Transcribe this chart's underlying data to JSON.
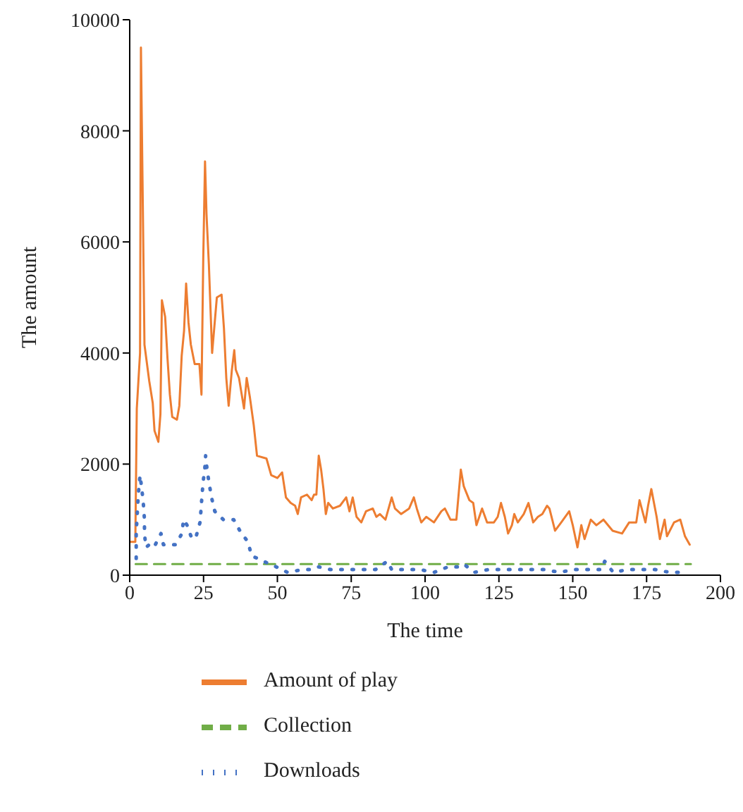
{
  "chart_data": {
    "type": "line",
    "xlabel": "The time",
    "ylabel": "The amount",
    "xlim": [
      0,
      200
    ],
    "xticks": [
      0,
      25,
      50,
      75,
      100,
      125,
      150,
      175,
      200
    ],
    "ylim": [
      0,
      10000
    ],
    "yticks": [
      0,
      2000,
      4000,
      6000,
      8000,
      10000
    ],
    "legend": "bottom",
    "marker": "none",
    "series": [
      {
        "name": "Amount of play",
        "color": "#ed7d31",
        "line_style": "solid",
        "x": [
          0,
          1.9,
          2.4,
          3.5,
          3.8,
          5,
          6.6,
          7.8,
          8.4,
          9.7,
          10.4,
          10.9,
          12,
          12.8,
          13.6,
          14.4,
          16,
          16.8,
          17.6,
          18.4,
          19.1,
          19.9,
          20.7,
          22,
          23.6,
          24.3,
          24.9,
          25.5,
          26,
          26.8,
          27.9,
          29.5,
          31.1,
          31.9,
          32.7,
          33.5,
          34.6,
          35.4,
          35.9,
          37,
          38.7,
          39.6,
          40.7,
          42,
          43.1,
          46.3,
          47.9,
          50,
          51.6,
          52.9,
          54.5,
          56,
          56.9,
          58,
          60,
          61.6,
          62.4,
          63.2,
          64,
          64.8,
          65.6,
          66.4,
          67.2,
          68.8,
          71.2,
          73.3,
          74.4,
          75.5,
          76.8,
          78.4,
          80,
          82.3,
          83.5,
          84.7,
          86.6,
          88.7,
          89.8,
          91.9,
          94.6,
          96.2,
          97.2,
          98.7,
          100.4,
          103,
          105.5,
          106.7,
          108.6,
          110.6,
          112.1,
          113.1,
          115,
          116.3,
          117.4,
          119.3,
          121,
          123.3,
          124.6,
          125.7,
          127,
          128.1,
          129.4,
          130.2,
          131.4,
          133.4,
          135,
          136.6,
          138.2,
          139.7,
          141.3,
          142.1,
          144,
          146.1,
          148.8,
          150,
          151.6,
          152.9,
          154,
          156.1,
          158,
          160.4,
          163.5,
          166.7,
          169.1,
          171.5,
          172.6,
          174.6,
          175.5,
          176.6,
          178.4,
          179.5,
          181.1,
          181.9,
          184.3,
          186.4,
          188,
          189.6
        ],
        "values": [
          600,
          600,
          3000,
          4000,
          9500,
          4150,
          3500,
          3100,
          2600,
          2400,
          2900,
          4950,
          4650,
          3900,
          3250,
          2850,
          2800,
          3050,
          3950,
          4400,
          5250,
          4550,
          4150,
          3800,
          3800,
          3250,
          5700,
          7450,
          6500,
          5600,
          4000,
          5000,
          5050,
          4450,
          3550,
          3050,
          3700,
          4050,
          3700,
          3550,
          3000,
          3550,
          3200,
          2700,
          2150,
          2100,
          1800,
          1750,
          1850,
          1400,
          1300,
          1250,
          1100,
          1400,
          1450,
          1350,
          1450,
          1450,
          2150,
          1900,
          1550,
          1100,
          1300,
          1200,
          1250,
          1400,
          1150,
          1400,
          1050,
          950,
          1150,
          1200,
          1050,
          1100,
          1000,
          1400,
          1200,
          1100,
          1200,
          1400,
          1200,
          950,
          1050,
          950,
          1150,
          1200,
          1000,
          1000,
          1900,
          1600,
          1350,
          1300,
          900,
          1200,
          950,
          950,
          1050,
          1300,
          1050,
          750,
          900,
          1100,
          950,
          1100,
          1300,
          950,
          1050,
          1100,
          1250,
          1200,
          800,
          950,
          1150,
          900,
          500,
          900,
          650,
          1000,
          900,
          1000,
          800,
          750,
          950,
          950,
          1350,
          950,
          1250,
          1550,
          1050,
          650,
          1000,
          700,
          950,
          1000,
          700,
          550
        ]
      },
      {
        "name": "Collection",
        "color": "#70ad47",
        "line_style": "dashed",
        "x": [
          2,
          190
        ],
        "values": [
          200,
          200
        ]
      },
      {
        "name": "Downloads",
        "color": "#4472c4",
        "line_style": "dotted",
        "x": [
          2.2,
          2.2,
          2.7,
          3,
          3.5,
          4.1,
          4.6,
          5,
          5,
          5.5,
          6.6,
          8.2,
          10.6,
          11.4,
          15.5,
          17.7,
          18.2,
          19.4,
          21.1,
          22.5,
          23.8,
          24.1,
          24.5,
          24.9,
          25.4,
          25.7,
          26.2,
          26.9,
          27.7,
          28.8,
          31.7,
          35.2,
          37.3,
          40,
          41.3,
          45.3,
          49.6,
          53.4,
          58.4,
          61.6,
          64,
          68,
          72.8,
          77.6,
          80,
          83.2,
          87.2,
          88.7,
          93.5,
          98.3,
          103,
          107.8,
          111,
          113.1,
          116.6,
          121.4,
          126.2,
          131,
          135.8,
          140.6,
          145.5,
          150.2,
          155,
          159.7,
          160.8,
          163.7,
          168.5,
          173.3,
          178,
          182.8,
          187.6
        ],
        "values": [
          300,
          750,
          1250,
          1500,
          1800,
          1550,
          1300,
          1000,
          750,
          500,
          550,
          500,
          750,
          550,
          550,
          750,
          1000,
          900,
          650,
          700,
          950,
          1150,
          1450,
          1700,
          1900,
          2150,
          1900,
          1650,
          1400,
          1150,
          1000,
          1000,
          800,
          600,
          350,
          250,
          150,
          50,
          100,
          100,
          150,
          100,
          100,
          100,
          100,
          100,
          250,
          100,
          100,
          100,
          50,
          150,
          150,
          200,
          50,
          100,
          100,
          100,
          100,
          100,
          50,
          100,
          100,
          100,
          250,
          50,
          100,
          100,
          100,
          50,
          50
        ]
      }
    ]
  }
}
